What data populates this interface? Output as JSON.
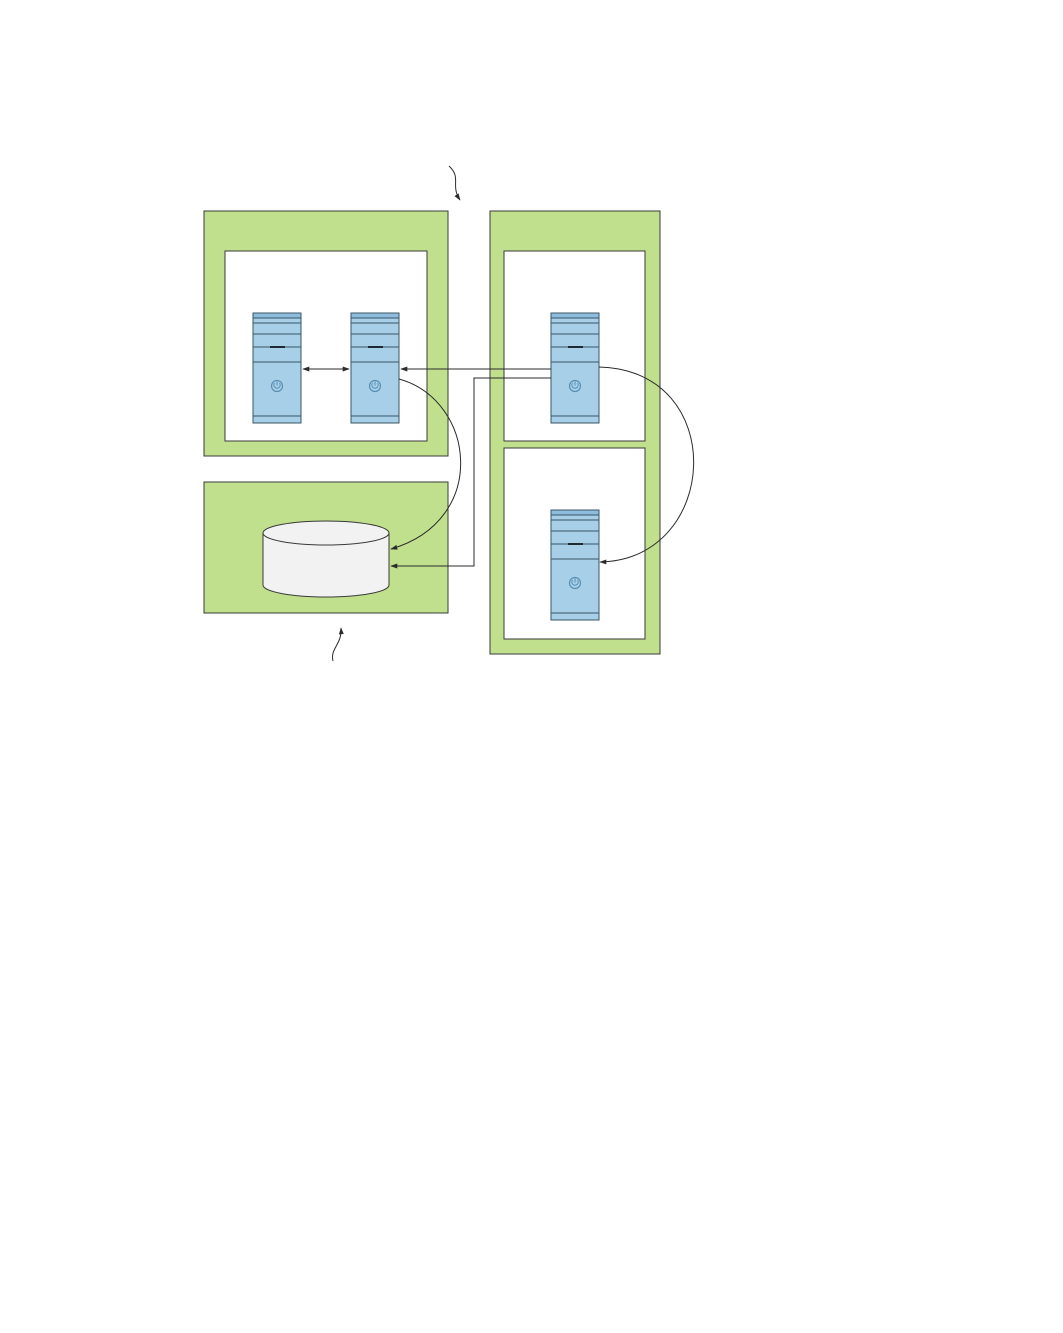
{
  "diagram": {
    "zones": [
      {
        "id": "zone-top-left",
        "contents": [
          "server-a",
          "server-b"
        ]
      },
      {
        "id": "zone-bottom-left",
        "contents": [
          "database"
        ]
      },
      {
        "id": "zone-right",
        "contents": [
          "server-c",
          "server-d"
        ]
      }
    ],
    "icons": {
      "server": "server-tower-icon",
      "database": "database-cylinder-icon",
      "power": "power-icon"
    },
    "connections": [
      {
        "from": "server-a",
        "to": "server-b",
        "bidirectional": true
      },
      {
        "from": "server-c",
        "to": "server-b",
        "bidirectional": false
      },
      {
        "from": "server-b",
        "to": "database",
        "bidirectional": false
      },
      {
        "from": "server-c",
        "to": "database",
        "bidirectional": false
      },
      {
        "from": "server-c",
        "to": "server-d",
        "bidirectional": false
      }
    ],
    "colors": {
      "zone_fill": "#c0e08e",
      "server_fill": "#a7cfe8",
      "database_fill": "#f2f2f2"
    }
  }
}
